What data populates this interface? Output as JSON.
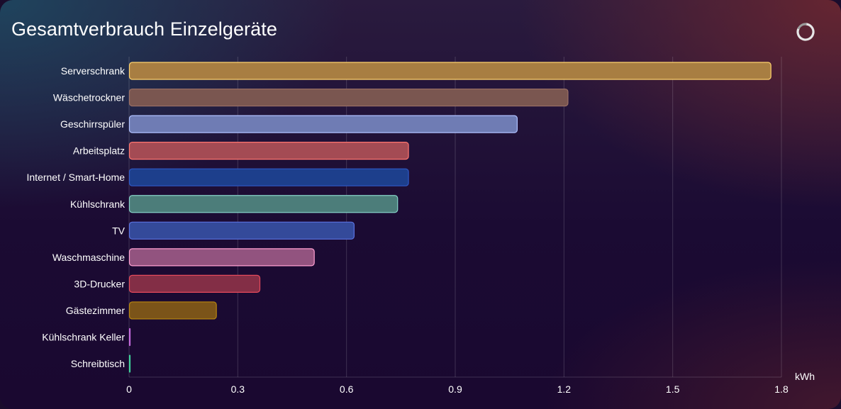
{
  "card": {
    "title": "Gesamtverbrauch Einzelgeräte",
    "refresh_icon": "refresh-spinner-icon"
  },
  "chart_data": {
    "type": "bar",
    "orientation": "horizontal",
    "title": "Gesamtverbrauch Einzelgeräte",
    "xlabel": "kWh",
    "ylabel": "",
    "xlim": [
      0,
      1.8
    ],
    "xticks": [
      "0",
      "0.3",
      "0.6",
      "0.9",
      "1.2",
      "1.5",
      "1.8"
    ],
    "grid": "vertical",
    "legend": "none",
    "categories": [
      "Serverschrank",
      "Wäschetrockner",
      "Geschirrspüler",
      "Arbeitsplatz",
      "Internet / Smart-Home",
      "Kühlschrank",
      "TV",
      "Waschmaschine",
      "3D-Drucker",
      "Gästezimmer",
      "Kühlschrank Keller",
      "Schreibtisch"
    ],
    "values": [
      1.77,
      1.21,
      1.07,
      0.77,
      0.77,
      0.74,
      0.62,
      0.51,
      0.36,
      0.24,
      0.002,
      0.001
    ],
    "fill_colors": [
      "#a87e42",
      "#7a5650",
      "#6f7cb4",
      "#a44b54",
      "#1d3f8c",
      "#4c7d7a",
      "#344a9a",
      "#92537f",
      "#832e46",
      "#7b5419",
      "#a94fbd",
      "#35b37e"
    ],
    "stroke_colors": [
      "#ffd36e",
      "#9b7066",
      "#b0c1ff",
      "#ff7570",
      "#2f59c6",
      "#85d1c7",
      "#5a72e0",
      "#ff9fd2",
      "#e64a5c",
      "#b8860f",
      "#c36adc",
      "#3fd19a"
    ]
  }
}
